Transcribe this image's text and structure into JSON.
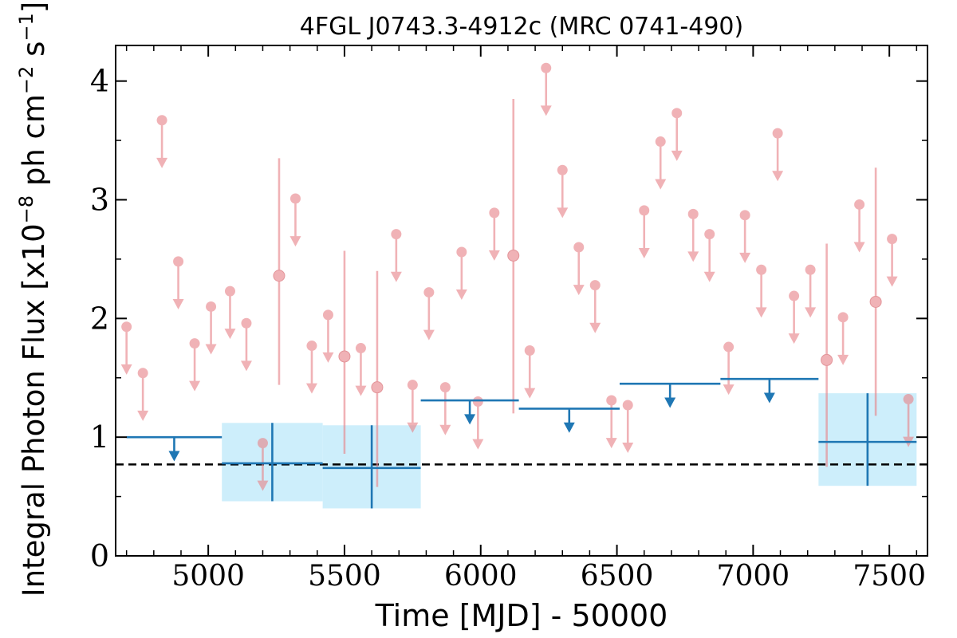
{
  "chart_data": {
    "type": "scatter",
    "title": "4FGL J0743.3-4912c (MRC 0741-490)",
    "xlabel": "Time [MJD] - 50000",
    "ylabel_main": "Integral Photon Flux [x10",
    "ylabel_exp1": "−8",
    "ylabel_mid": " ph cm",
    "ylabel_exp2": "−2",
    "ylabel_mid2": " s",
    "ylabel_exp3": "−1",
    "ylabel_end": "]",
    "xlim": [
      4660,
      7640
    ],
    "ylim": [
      0,
      4.3
    ],
    "xticks": [
      5000,
      5500,
      6000,
      6500,
      7000,
      7500
    ],
    "yticks": [
      0,
      1,
      2,
      3,
      4
    ],
    "reference_line": 0.77,
    "colors": {
      "short_bins": "#e8848a",
      "long_bins": "#1f77b4",
      "long_band": "#cdeefb",
      "reference": "#000000"
    },
    "short_bins_upper_limits": [
      {
        "x": 4700,
        "y": 1.93
      },
      {
        "x": 4760,
        "y": 1.54
      },
      {
        "x": 4830,
        "y": 3.67
      },
      {
        "x": 4890,
        "y": 2.48
      },
      {
        "x": 4950,
        "y": 1.79
      },
      {
        "x": 5010,
        "y": 2.1
      },
      {
        "x": 5080,
        "y": 2.23
      },
      {
        "x": 5140,
        "y": 1.96
      },
      {
        "x": 5200,
        "y": 0.95
      },
      {
        "x": 5320,
        "y": 3.01
      },
      {
        "x": 5380,
        "y": 1.77
      },
      {
        "x": 5440,
        "y": 2.03
      },
      {
        "x": 5560,
        "y": 1.75
      },
      {
        "x": 5690,
        "y": 2.71
      },
      {
        "x": 5750,
        "y": 1.44
      },
      {
        "x": 5810,
        "y": 2.22
      },
      {
        "x": 5870,
        "y": 1.42
      },
      {
        "x": 5930,
        "y": 2.56
      },
      {
        "x": 5990,
        "y": 1.3
      },
      {
        "x": 6050,
        "y": 2.89
      },
      {
        "x": 6180,
        "y": 1.73
      },
      {
        "x": 6240,
        "y": 4.11
      },
      {
        "x": 6300,
        "y": 3.25
      },
      {
        "x": 6360,
        "y": 2.6
      },
      {
        "x": 6420,
        "y": 2.28
      },
      {
        "x": 6480,
        "y": 1.31
      },
      {
        "x": 6540,
        "y": 1.27
      },
      {
        "x": 6600,
        "y": 2.91
      },
      {
        "x": 6660,
        "y": 3.49
      },
      {
        "x": 6720,
        "y": 3.73
      },
      {
        "x": 6780,
        "y": 2.88
      },
      {
        "x": 6840,
        "y": 2.71
      },
      {
        "x": 6910,
        "y": 1.76
      },
      {
        "x": 6970,
        "y": 2.87
      },
      {
        "x": 7030,
        "y": 2.41
      },
      {
        "x": 7090,
        "y": 3.56
      },
      {
        "x": 7150,
        "y": 2.19
      },
      {
        "x": 7210,
        "y": 2.41
      },
      {
        "x": 7330,
        "y": 2.01
      },
      {
        "x": 7390,
        "y": 2.96
      },
      {
        "x": 7510,
        "y": 2.67
      },
      {
        "x": 7570,
        "y": 1.32
      }
    ],
    "short_bins_detections": [
      {
        "x": 5260,
        "y": 2.36,
        "ylo": 1.44,
        "yhi": 3.35
      },
      {
        "x": 5500,
        "y": 1.68,
        "ylo": 0.86,
        "yhi": 2.57
      },
      {
        "x": 5620,
        "y": 1.42,
        "ylo": 0.58,
        "yhi": 2.4
      },
      {
        "x": 6120,
        "y": 2.53,
        "ylo": 1.2,
        "yhi": 3.85
      },
      {
        "x": 7270,
        "y": 1.65,
        "ylo": 0.75,
        "yhi": 2.63
      },
      {
        "x": 7450,
        "y": 2.14,
        "ylo": 1.18,
        "yhi": 3.27
      }
    ],
    "long_bins_upper_limits": [
      {
        "x0": 4700,
        "x1": 5050,
        "y": 1.0
      },
      {
        "x0": 5780,
        "x1": 6140,
        "y": 1.31
      },
      {
        "x0": 6140,
        "x1": 6510,
        "y": 1.24
      },
      {
        "x0": 6510,
        "x1": 6880,
        "y": 1.45
      },
      {
        "x0": 6880,
        "x1": 7240,
        "y": 1.49
      }
    ],
    "long_bins_detections": [
      {
        "x0": 5050,
        "x1": 5420,
        "y": 0.78,
        "ylo": 0.46,
        "yhi": 1.12
      },
      {
        "x0": 5420,
        "x1": 5780,
        "y": 0.74,
        "ylo": 0.4,
        "yhi": 1.1
      },
      {
        "x0": 7240,
        "x1": 7600,
        "y": 0.96,
        "ylo": 0.59,
        "yhi": 1.37
      }
    ]
  }
}
